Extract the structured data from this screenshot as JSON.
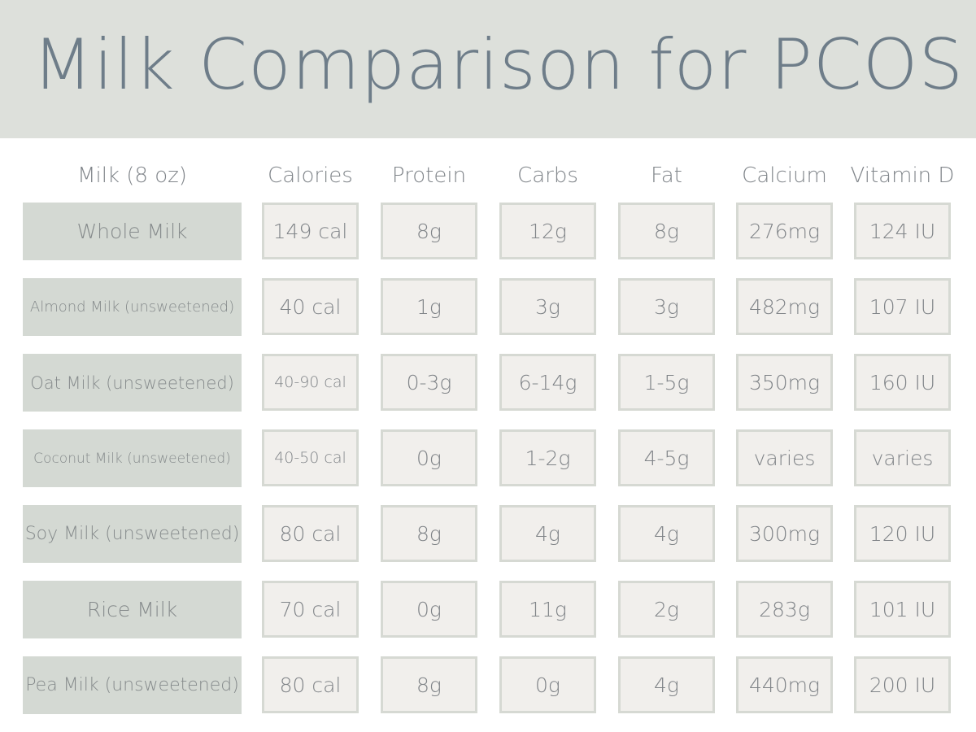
{
  "title": "Milk Comparison for PCOS",
  "columns": {
    "milk": "Milk (8 oz)",
    "calories": "Calories",
    "protein": "Protein",
    "carbs": "Carbs",
    "fat": "Fat",
    "calcium": "Calcium",
    "vitamin_d": "Vitamin D"
  },
  "rows": [
    {
      "name": "Whole Milk",
      "calories": "149 cal",
      "protein": "8g",
      "carbs": "12g",
      "fat": "8g",
      "calcium": "276mg",
      "vitamin_d": "124 IU"
    },
    {
      "name": "Almond Milk (unsweetened)",
      "calories": "40 cal",
      "protein": "1g",
      "carbs": "3g",
      "fat": "3g",
      "calcium": "482mg",
      "vitamin_d": "107 IU"
    },
    {
      "name": "Oat Milk (unsweetened)",
      "calories": "40-90 cal",
      "protein": "0-3g",
      "carbs": "6-14g",
      "fat": "1-5g",
      "calcium": "350mg",
      "vitamin_d": "160 IU"
    },
    {
      "name": "Coconut Milk (unsweetened)",
      "calories": "40-50 cal",
      "protein": "0g",
      "carbs": "1-2g",
      "fat": "4-5g",
      "calcium": "varies",
      "vitamin_d": "varies"
    },
    {
      "name": "Soy Milk (unsweetened)",
      "calories": "80 cal",
      "protein": "8g",
      "carbs": "4g",
      "fat": "4g",
      "calcium": "300mg",
      "vitamin_d": "120 IU"
    },
    {
      "name": "Rice Milk",
      "calories": "70 cal",
      "protein": "0g",
      "carbs": "11g",
      "fat": "2g",
      "calcium": "283g",
      "vitamin_d": "101 IU"
    },
    {
      "name": "Pea Milk (unsweetened)",
      "calories": "80 cal",
      "protein": "8g",
      "carbs": "0g",
      "fat": "4g",
      "calcium": "440mg",
      "vitamin_d": "200 IU"
    }
  ],
  "colors": {
    "banner": "#dde0db",
    "title": "#6e7d89",
    "label_bg": "#d4d9d3",
    "cell_bg": "#f1efec",
    "cell_border": "#d6d9d3"
  }
}
